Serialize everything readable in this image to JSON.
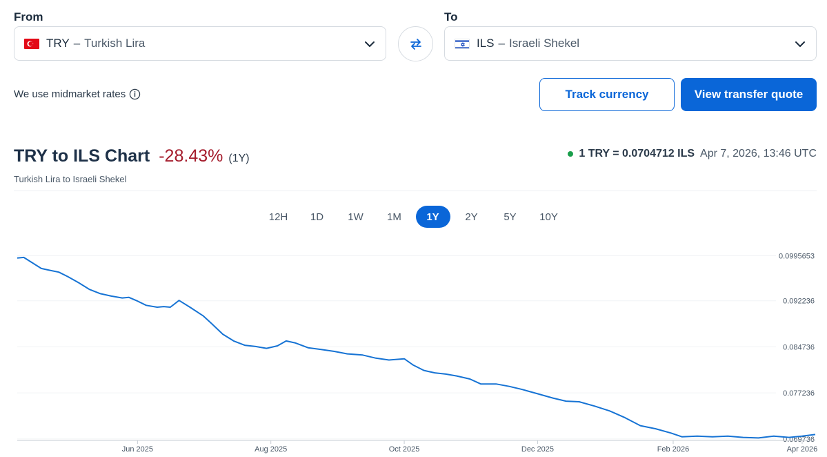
{
  "from": {
    "label": "From",
    "code": "TRY",
    "name": "Turkish Lira",
    "flag": "turkey-flag-icon"
  },
  "to": {
    "label": "To",
    "code": "ILS",
    "name": "Israeli Shekel",
    "flag": "israel-flag-icon"
  },
  "dash": "–",
  "midmarket_text": "We use midmarket rates",
  "buttons": {
    "track": "Track currency",
    "quote": "View transfer quote"
  },
  "chart_header": {
    "title": "TRY to ILS Chart",
    "change": "-28.43%",
    "period": "(1Y)",
    "subtitle": "Turkish Lira to Israeli Shekel",
    "rate": "1 TRY = 0.0704712 ILS",
    "timestamp": "Apr 7, 2026, 13:46 UTC"
  },
  "range_tabs": [
    "12H",
    "1D",
    "1W",
    "1M",
    "1Y",
    "2Y",
    "5Y",
    "10Y"
  ],
  "active_range": "1Y",
  "colors": {
    "accent": "#0a66d8",
    "negative": "#a51d2d",
    "live": "#1a9e4b",
    "line": "#1673d4"
  },
  "chart_data": {
    "type": "line",
    "x_ticks": [
      "Jun 2025",
      "Aug 2025",
      "Oct 2025",
      "Dec 2025",
      "Feb 2026",
      "Apr 2026"
    ],
    "y_ticks": [
      "0.0995653",
      "0.092236",
      "0.084736",
      "0.077236",
      "0.069736"
    ],
    "ylim": [
      0.0695,
      0.1003
    ],
    "series": [
      {
        "x": [
          "2025-04-07",
          "2025-04-10",
          "2025-04-14",
          "2025-04-18",
          "2025-04-22",
          "2025-04-26",
          "2025-04-30",
          "2025-05-05",
          "2025-05-10",
          "2025-05-15",
          "2025-05-20",
          "2025-05-25",
          "2025-05-28",
          "2025-06-01",
          "2025-06-05",
          "2025-06-10",
          "2025-06-13",
          "2025-06-16",
          "2025-06-20",
          "2025-06-25",
          "2025-07-01",
          "2025-07-05",
          "2025-07-10",
          "2025-07-15",
          "2025-07-20",
          "2025-07-25",
          "2025-07-30",
          "2025-08-04",
          "2025-08-08",
          "2025-08-12",
          "2025-08-18",
          "2025-08-24",
          "2025-08-30",
          "2025-09-05",
          "2025-09-12",
          "2025-09-18",
          "2025-09-24",
          "2025-10-01",
          "2025-10-05",
          "2025-10-10",
          "2025-10-15",
          "2025-10-20",
          "2025-10-25",
          "2025-10-31",
          "2025-11-05",
          "2025-11-12",
          "2025-11-18",
          "2025-11-24",
          "2025-12-01",
          "2025-12-08",
          "2025-12-14",
          "2025-12-20",
          "2025-12-27",
          "2026-01-03",
          "2026-01-10",
          "2026-01-17",
          "2026-01-24",
          "2026-01-31",
          "2026-02-05",
          "2026-02-12",
          "2026-02-19",
          "2026-02-26",
          "2026-03-05",
          "2026-03-12",
          "2026-03-19",
          "2026-03-26",
          "2026-04-01",
          "2026-04-07"
        ],
        "y": [
          0.0992,
          0.0993,
          0.0984,
          0.0975,
          0.0972,
          0.0969,
          0.0962,
          0.0952,
          0.0941,
          0.0934,
          0.093,
          0.0927,
          0.0928,
          0.0922,
          0.0915,
          0.0912,
          0.0913,
          0.0912,
          0.0923,
          0.0912,
          0.0898,
          0.0885,
          0.0868,
          0.0857,
          0.085,
          0.0848,
          0.0845,
          0.0849,
          0.0857,
          0.0854,
          0.0846,
          0.0843,
          0.084,
          0.0836,
          0.0834,
          0.0829,
          0.0826,
          0.0828,
          0.0818,
          0.0809,
          0.0805,
          0.0803,
          0.08,
          0.0795,
          0.0787,
          0.0787,
          0.0783,
          0.0778,
          0.0771,
          0.0764,
          0.0759,
          0.0758,
          0.0751,
          0.0743,
          0.0732,
          0.0719,
          0.0714,
          0.0707,
          0.0701,
          0.0702,
          0.0701,
          0.0702,
          0.07,
          0.0699,
          0.0702,
          0.07,
          0.0702,
          0.0704712
        ]
      }
    ]
  }
}
